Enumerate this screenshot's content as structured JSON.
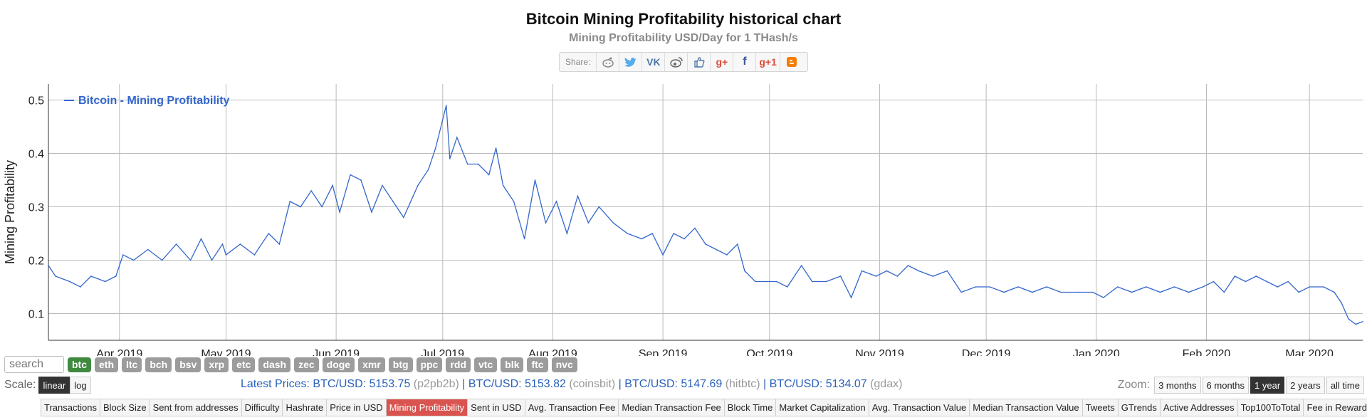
{
  "header": {
    "title": "Bitcoin Mining Profitability historical chart",
    "subtitle": "Mining Profitability USD/Day for 1 THash/s"
  },
  "share": {
    "label": "Share:",
    "icons": [
      "reddit-icon",
      "twitter-icon",
      "vk-icon",
      "weibo-icon",
      "like-icon",
      "google-plus-icon",
      "facebook-icon",
      "google-plus-one-icon",
      "blogger-icon"
    ]
  },
  "chart_data": {
    "type": "line",
    "title": "",
    "ylabel": "Mining Profitability",
    "xlabel": "",
    "ylim": [
      0.05,
      0.53
    ],
    "yticks": [
      0.1,
      0.2,
      0.3,
      0.4,
      0.5
    ],
    "xlim": [
      "2019-03-12",
      "2020-03-16"
    ],
    "xticks": [
      {
        "date": "2019-04-01",
        "label": "Apr 2019"
      },
      {
        "date": "2019-05-01",
        "label": "May 2019"
      },
      {
        "date": "2019-06-01",
        "label": "Jun 2019"
      },
      {
        "date": "2019-07-01",
        "label": "Jul 2019"
      },
      {
        "date": "2019-08-01",
        "label": "Aug 2019"
      },
      {
        "date": "2019-09-01",
        "label": "Sep 2019"
      },
      {
        "date": "2019-10-01",
        "label": "Oct 2019"
      },
      {
        "date": "2019-11-01",
        "label": "Nov 2019"
      },
      {
        "date": "2019-12-01",
        "label": "Dec 2019"
      },
      {
        "date": "2020-01-01",
        "label": "Jan 2020"
      },
      {
        "date": "2020-02-01",
        "label": "Feb 2020"
      },
      {
        "date": "2020-03-01",
        "label": "Mar 2020"
      }
    ],
    "grid": true,
    "legend_position": "top-left",
    "series": [
      {
        "name": "Bitcoin - Mining Profitability",
        "color": "#3366cc",
        "points": [
          [
            "2019-03-12",
            0.19
          ],
          [
            "2019-03-14",
            0.17
          ],
          [
            "2019-03-18",
            0.16
          ],
          [
            "2019-03-21",
            0.15
          ],
          [
            "2019-03-24",
            0.17
          ],
          [
            "2019-03-28",
            0.16
          ],
          [
            "2019-03-31",
            0.17
          ],
          [
            "2019-04-02",
            0.21
          ],
          [
            "2019-04-05",
            0.2
          ],
          [
            "2019-04-09",
            0.22
          ],
          [
            "2019-04-13",
            0.2
          ],
          [
            "2019-04-17",
            0.23
          ],
          [
            "2019-04-21",
            0.2
          ],
          [
            "2019-04-24",
            0.24
          ],
          [
            "2019-04-27",
            0.2
          ],
          [
            "2019-04-30",
            0.23
          ],
          [
            "2019-05-01",
            0.21
          ],
          [
            "2019-05-05",
            0.23
          ],
          [
            "2019-05-09",
            0.21
          ],
          [
            "2019-05-13",
            0.25
          ],
          [
            "2019-05-16",
            0.23
          ],
          [
            "2019-05-19",
            0.31
          ],
          [
            "2019-05-22",
            0.3
          ],
          [
            "2019-05-25",
            0.33
          ],
          [
            "2019-05-28",
            0.3
          ],
          [
            "2019-05-31",
            0.34
          ],
          [
            "2019-06-02",
            0.29
          ],
          [
            "2019-06-05",
            0.36
          ],
          [
            "2019-06-08",
            0.35
          ],
          [
            "2019-06-11",
            0.29
          ],
          [
            "2019-06-14",
            0.34
          ],
          [
            "2019-06-17",
            0.31
          ],
          [
            "2019-06-20",
            0.28
          ],
          [
            "2019-06-24",
            0.34
          ],
          [
            "2019-06-27",
            0.37
          ],
          [
            "2019-06-29",
            0.41
          ],
          [
            "2019-07-02",
            0.49
          ],
          [
            "2019-07-03",
            0.39
          ],
          [
            "2019-07-05",
            0.43
          ],
          [
            "2019-07-08",
            0.38
          ],
          [
            "2019-07-11",
            0.38
          ],
          [
            "2019-07-14",
            0.36
          ],
          [
            "2019-07-16",
            0.41
          ],
          [
            "2019-07-18",
            0.34
          ],
          [
            "2019-07-21",
            0.31
          ],
          [
            "2019-07-24",
            0.24
          ],
          [
            "2019-07-27",
            0.35
          ],
          [
            "2019-07-30",
            0.27
          ],
          [
            "2019-08-02",
            0.31
          ],
          [
            "2019-08-05",
            0.25
          ],
          [
            "2019-08-08",
            0.32
          ],
          [
            "2019-08-11",
            0.27
          ],
          [
            "2019-08-14",
            0.3
          ],
          [
            "2019-08-18",
            0.27
          ],
          [
            "2019-08-22",
            0.25
          ],
          [
            "2019-08-26",
            0.24
          ],
          [
            "2019-08-29",
            0.25
          ],
          [
            "2019-09-01",
            0.21
          ],
          [
            "2019-09-04",
            0.25
          ],
          [
            "2019-09-07",
            0.24
          ],
          [
            "2019-09-10",
            0.26
          ],
          [
            "2019-09-13",
            0.23
          ],
          [
            "2019-09-16",
            0.22
          ],
          [
            "2019-09-19",
            0.21
          ],
          [
            "2019-09-22",
            0.23
          ],
          [
            "2019-09-24",
            0.18
          ],
          [
            "2019-09-27",
            0.16
          ],
          [
            "2019-09-30",
            0.16
          ],
          [
            "2019-10-03",
            0.16
          ],
          [
            "2019-10-06",
            0.15
          ],
          [
            "2019-10-10",
            0.19
          ],
          [
            "2019-10-13",
            0.16
          ],
          [
            "2019-10-17",
            0.16
          ],
          [
            "2019-10-21",
            0.17
          ],
          [
            "2019-10-24",
            0.13
          ],
          [
            "2019-10-27",
            0.18
          ],
          [
            "2019-10-31",
            0.17
          ],
          [
            "2019-11-03",
            0.18
          ],
          [
            "2019-11-06",
            0.17
          ],
          [
            "2019-11-09",
            0.19
          ],
          [
            "2019-11-12",
            0.18
          ],
          [
            "2019-11-16",
            0.17
          ],
          [
            "2019-11-20",
            0.18
          ],
          [
            "2019-11-24",
            0.14
          ],
          [
            "2019-11-28",
            0.15
          ],
          [
            "2019-12-02",
            0.15
          ],
          [
            "2019-12-06",
            0.14
          ],
          [
            "2019-12-10",
            0.15
          ],
          [
            "2019-12-14",
            0.14
          ],
          [
            "2019-12-18",
            0.15
          ],
          [
            "2019-12-22",
            0.14
          ],
          [
            "2019-12-27",
            0.14
          ],
          [
            "2019-12-31",
            0.14
          ],
          [
            "2020-01-03",
            0.13
          ],
          [
            "2020-01-07",
            0.15
          ],
          [
            "2020-01-11",
            0.14
          ],
          [
            "2020-01-15",
            0.15
          ],
          [
            "2020-01-19",
            0.14
          ],
          [
            "2020-01-23",
            0.15
          ],
          [
            "2020-01-27",
            0.14
          ],
          [
            "2020-01-31",
            0.15
          ],
          [
            "2020-02-03",
            0.16
          ],
          [
            "2020-02-06",
            0.14
          ],
          [
            "2020-02-09",
            0.17
          ],
          [
            "2020-02-12",
            0.16
          ],
          [
            "2020-02-15",
            0.17
          ],
          [
            "2020-02-18",
            0.16
          ],
          [
            "2020-02-21",
            0.15
          ],
          [
            "2020-02-24",
            0.16
          ],
          [
            "2020-02-27",
            0.14
          ],
          [
            "2020-03-01",
            0.15
          ],
          [
            "2020-03-05",
            0.15
          ],
          [
            "2020-03-08",
            0.14
          ],
          [
            "2020-03-10",
            0.12
          ],
          [
            "2020-03-12",
            0.09
          ],
          [
            "2020-03-14",
            0.08
          ],
          [
            "2020-03-16",
            0.085
          ]
        ]
      }
    ]
  },
  "coins": {
    "search_placeholder": "search",
    "items": [
      "btc",
      "eth",
      "ltc",
      "bch",
      "bsv",
      "xrp",
      "etc",
      "dash",
      "zec",
      "doge",
      "xmr",
      "btg",
      "ppc",
      "rdd",
      "vtc",
      "blk",
      "ftc",
      "nvc"
    ],
    "active": "btc"
  },
  "scale": {
    "label": "Scale:",
    "options": [
      "linear",
      "log"
    ],
    "active": "linear"
  },
  "prices": {
    "label": "Latest Prices:",
    "items": [
      {
        "pair": "BTC/USD: 5153.75",
        "source": "(p2pb2b)"
      },
      {
        "pair": "BTC/USD: 5153.82",
        "source": "(coinsbit)"
      },
      {
        "pair": "BTC/USD: 5147.69",
        "source": "(hitbtc)"
      },
      {
        "pair": "BTC/USD: 5134.07",
        "source": "(gdax)"
      }
    ]
  },
  "zoom": {
    "label": "Zoom:",
    "options": [
      "3 months",
      "6 months",
      "1 year",
      "2 years",
      "all time"
    ],
    "active": "1 year"
  },
  "tabs": {
    "items": [
      "Transactions",
      "Block Size",
      "Sent from addresses",
      "Difficulty",
      "Hashrate",
      "Price in USD",
      "Mining Profitability",
      "Sent in USD",
      "Avg. Transaction Fee",
      "Median Transaction Fee",
      "Block Time",
      "Market Capitalization",
      "Avg. Transaction Value",
      "Median Transaction Value",
      "Tweets",
      "GTrends",
      "Active Addresses",
      "Top100ToTotal",
      "Fee in Reward"
    ],
    "active": "Mining Profitability"
  },
  "colors": {
    "line": "#3366cc",
    "grid": "#bbbbbb",
    "active_tab": "#d9534f",
    "active_coin": "#3f8a3f"
  }
}
